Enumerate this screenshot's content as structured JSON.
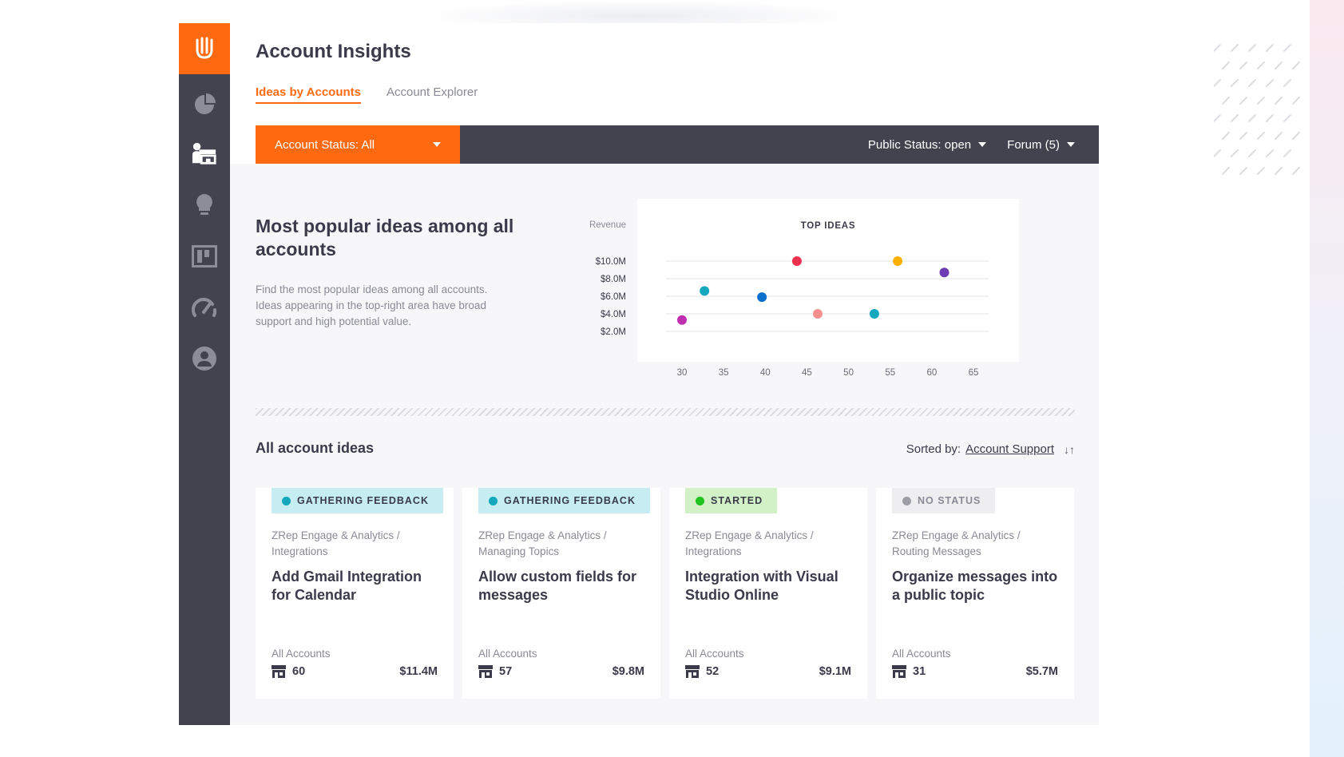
{
  "app": {
    "title": "Account Insights",
    "nav": [
      "analytics-icon",
      "accounts-icon",
      "ideas-icon",
      "roadmap-icon",
      "performance-icon",
      "profile-icon"
    ]
  },
  "tabs": [
    {
      "label": "Ideas by Accounts",
      "active": true
    },
    {
      "label": "Account Explorer",
      "active": false
    }
  ],
  "filters": {
    "account_status": "Account Status: All",
    "public_status": "Public Status: open",
    "forum": "Forum (5)"
  },
  "insight": {
    "heading": "Most popular ideas among all accounts",
    "description": "Find the most popular ideas among all accounts. Ideas appearing in the top-right area have broad support and high potential value."
  },
  "chart_data": {
    "type": "scatter",
    "title": "TOP IDEAS",
    "ylabel": "Revenue",
    "xlabel": "",
    "xlim": [
      28,
      66
    ],
    "ylim": [
      1,
      11
    ],
    "x_ticks": [
      "30",
      "35",
      "40",
      "45",
      "50",
      "55",
      "60",
      "65"
    ],
    "x_tick_values": [
      30,
      35,
      40,
      45,
      50,
      55,
      60,
      65
    ],
    "y_ticks": [
      "$10.0M",
      "$8.0M",
      "$6.0M",
      "$4.0M",
      "$2.0M"
    ],
    "y_tick_values": [
      10,
      8,
      6,
      4,
      2
    ],
    "points": [
      {
        "x": 43.8,
        "y": 10.0,
        "color": "#f0304f"
      },
      {
        "x": 55.9,
        "y": 10.0,
        "color": "#ffb000"
      },
      {
        "x": 61.5,
        "y": 8.7,
        "color": "#6c3cb4"
      },
      {
        "x": 32.7,
        "y": 6.6,
        "color": "#13a8bd"
      },
      {
        "x": 39.6,
        "y": 5.9,
        "color": "#0b6fcc"
      },
      {
        "x": 46.3,
        "y": 4.0,
        "color": "#f58f8f"
      },
      {
        "x": 53.1,
        "y": 4.0,
        "color": "#13a8bd"
      },
      {
        "x": 30.0,
        "y": 3.3,
        "color": "#c02fb0"
      }
    ]
  },
  "list": {
    "title": "All account ideas",
    "sorted_label": "Sorted by:",
    "sorted_value": "Account Support",
    "sort_icon": "↓↑"
  },
  "cards": [
    {
      "status": "GATHERING FEEDBACK",
      "status_type": "gf",
      "crumb": "ZRep Engage & Analytics / Integrations",
      "title": "Add Gmail Integration for Calendar",
      "accounts_label": "All Accounts",
      "count": "60",
      "revenue": "$11.4M"
    },
    {
      "status": "GATHERING FEEDBACK",
      "status_type": "gf",
      "crumb": "ZRep Engage & Analytics / Managing Topics",
      "title": "Allow custom fields for messages",
      "accounts_label": "All Accounts",
      "count": "57",
      "revenue": "$9.8M"
    },
    {
      "status": "STARTED",
      "status_type": "st",
      "crumb": "ZRep Engage & Analytics / Integrations",
      "title": "Integration with Visual Studio Online",
      "accounts_label": "All Accounts",
      "count": "52",
      "revenue": "$9.1M"
    },
    {
      "status": "NO STATUS",
      "status_type": "ns",
      "crumb": "ZRep Engage & Analytics / Routing Messages",
      "title": "Organize messages into a public topic",
      "accounts_label": "All Accounts",
      "count": "31",
      "revenue": "$5.7M"
    }
  ]
}
